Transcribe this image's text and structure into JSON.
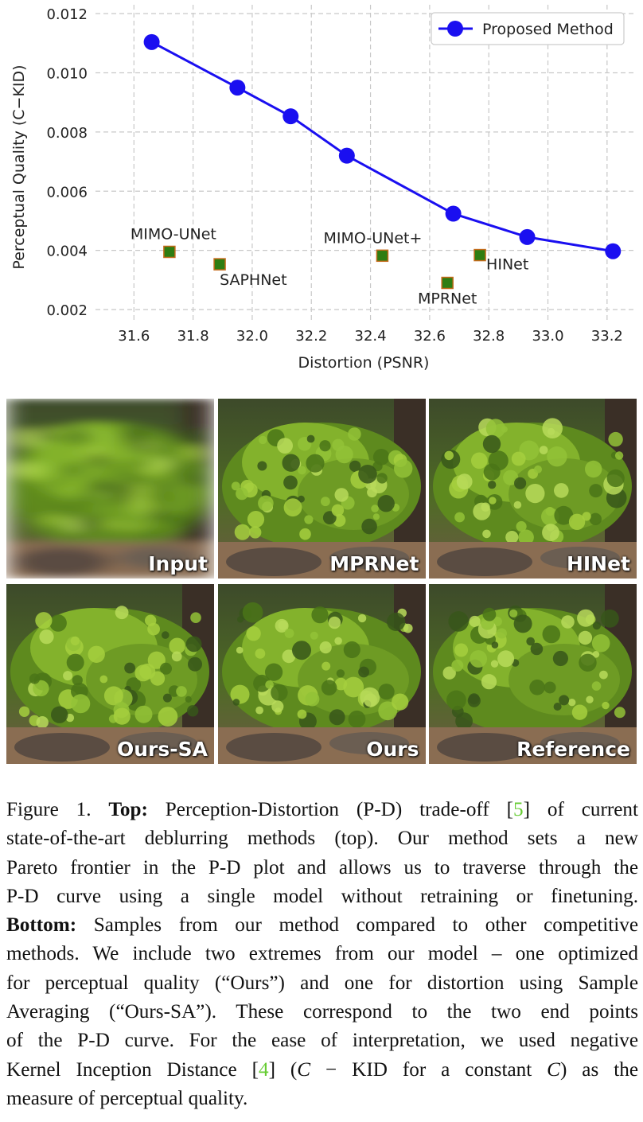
{
  "chart_data": {
    "type": "scatter",
    "xlabel": "Distortion (PSNR)",
    "ylabel": "Perceptual Quality (C−KID)",
    "xlim": [
      31.47,
      33.3
    ],
    "ylim": [
      0.00165,
      0.0123
    ],
    "xticks": [
      "31.6",
      "31.8",
      "32.0",
      "32.2",
      "32.4",
      "32.6",
      "32.8",
      "33.0",
      "33.2"
    ],
    "yticks": [
      "0.002",
      "0.004",
      "0.006",
      "0.008",
      "0.010",
      "0.012"
    ],
    "grid": true,
    "legend": {
      "placement": "top-right",
      "entries": [
        "Proposed Method"
      ]
    },
    "series": [
      {
        "name": "Proposed Method",
        "kind": "line",
        "color": "#1a0ff0",
        "points": [
          [
            31.66,
            0.01104
          ],
          [
            31.95,
            0.0095
          ],
          [
            32.13,
            0.00853
          ],
          [
            32.32,
            0.0072
          ],
          [
            32.68,
            0.00524
          ],
          [
            32.93,
            0.00445
          ],
          [
            33.22,
            0.00397
          ]
        ]
      },
      {
        "name": "",
        "kind": "markers",
        "color": "#2e7d12",
        "points": [
          {
            "x": 31.72,
            "y": 0.00395,
            "label": "MIMO-UNet"
          },
          {
            "x": 31.89,
            "y": 0.00353,
            "label": "SAPHNet"
          },
          {
            "x": 32.44,
            "y": 0.00382,
            "label": "MIMO-UNet+"
          },
          {
            "x": 32.66,
            "y": 0.0029,
            "label": "MPRNet"
          },
          {
            "x": 32.77,
            "y": 0.00384,
            "label": "HINet"
          }
        ]
      }
    ]
  },
  "panels": {
    "input": "Input",
    "mprnet": "MPRNet",
    "hinet": "HINet",
    "ours_sa": "Ours-SA",
    "ours": "Ours",
    "reference": "Reference"
  },
  "caption": {
    "l1a": "Figure 1.",
    "l1b": "Top:",
    "l1c": "Perception-Distortion (P-D) trade-off [",
    "l1ref": "5",
    "l1d": "] of current",
    "l2": "state-of-the-art deblurring methods (top). Our method sets a new",
    "l3": "Pareto frontier in the P-D plot and allows us to traverse through the",
    "l4": "P-D curve using a single model without retraining or finetuning.",
    "l5a": "Bottom:",
    "l5b": "Samples from our method compared to other competitive",
    "l6": "methods. We include two extremes from our model – one optimized",
    "l7": "for perceptual quality (“Ours”) and one for distortion using Sample",
    "l8": "Averaging (“Ours-SA”). These correspond to the two end points",
    "l9": "of the P-D curve. For the ease of interpretation, we used negative",
    "l10a": "Kernel Inception Distance [",
    "l10ref": "4",
    "l10b": "] (",
    "l10c": "C",
    "l10d": " − KID for a constant ",
    "l10e": "C",
    "l10f": ") as the",
    "l11": "measure of perceptual quality."
  }
}
